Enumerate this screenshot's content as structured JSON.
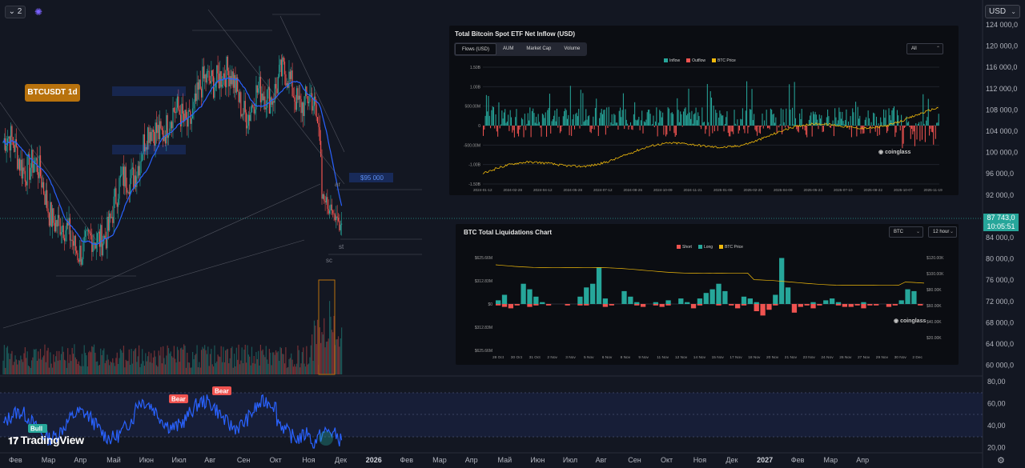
{
  "toolbar": {
    "interval_label": "2",
    "currency": "USD"
  },
  "symbol_badge": "BTCUSDT 1d",
  "price_tag": {
    "price": "87 743,0",
    "countdown": "10:05:51"
  },
  "annotations": {
    "target_label": "$95 000",
    "ar_label": "ar",
    "st_label": "st",
    "sc_label": "sc"
  },
  "rsi_labels": {
    "bull": "Bull",
    "bear1": "Bear",
    "bear2": "Bear"
  },
  "brand": "TradingView",
  "price_axis": [
    "124 000,0",
    "120 000,0",
    "116 000,0",
    "112 000,0",
    "108 000,0",
    "104 000,0",
    "100 000,0",
    "96 000,0",
    "92 000,0",
    "88 000,0",
    "84 000,0",
    "80 000,0",
    "76 000,0",
    "72 000,0",
    "68 000,0",
    "64 000,0",
    "60 000,0"
  ],
  "rsi_axis": [
    "80,00",
    "60,00",
    "40,00",
    "20,00"
  ],
  "time_axis": [
    "Фев",
    "Мар",
    "Апр",
    "Май",
    "Июн",
    "Июл",
    "Авг",
    "Сен",
    "Окт",
    "Ноя",
    "Дек",
    "2026",
    "Фев",
    "Мар",
    "Апр",
    "Май",
    "Июн",
    "Июл",
    "Авг",
    "Сен",
    "Окт",
    "Ноя",
    "Дек",
    "2027",
    "Фев",
    "Мар",
    "Апр"
  ],
  "colors": {
    "up": "#26a69a",
    "down": "#ef5350",
    "ma": "#2962ff",
    "rsi": "#2962ff",
    "badge": "#b8720d",
    "inflow": "#26a69a",
    "outflow": "#ef5350",
    "btc_price": "#f0b90b"
  },
  "etf": {
    "title": "Total Bitcoin Spot ETF Net Inflow (USD)",
    "tabs": [
      "Flows (USD)",
      "AUM",
      "Market Cap",
      "Volume"
    ],
    "range": "All",
    "legend": [
      "Inflow",
      "Outflow",
      "BTC Price"
    ],
    "y_labels": [
      "1.50B",
      "1.00B",
      "500.00M",
      "0",
      "-500.00M",
      "-1.00B",
      "-1.50B"
    ],
    "x_labels": [
      "2024-01-12",
      "2024-02-28",
      "2024-04-12",
      "2024-05-28",
      "2024-07-12",
      "2024-08-26",
      "2024-10-09",
      "2024-11-21",
      "2025-01-08",
      "2025-02-25",
      "2025-04-09",
      "2025-05-23",
      "2025-07-10",
      "2025-08-22",
      "2025-10-07",
      "2025-11-19"
    ],
    "watermark": "coinglass"
  },
  "liq": {
    "title": "BTC Total Liquidations Chart",
    "coin": "BTC",
    "interval": "12 hour",
    "legend": [
      "Short",
      "Long",
      "BTC Price"
    ],
    "y_left": [
      "$625.66M",
      "$312.83M",
      "$0",
      "$312.83M",
      "$625.66M"
    ],
    "y_right": [
      "$120.00K",
      "$100.00K",
      "$80.00K",
      "$60.00K",
      "$40.00K",
      "$20.00K"
    ],
    "x_labels": [
      "28 Oct",
      "30 Oct",
      "31 Oct",
      "2 Nov",
      "3 Nov",
      "5 Nov",
      "6 Nov",
      "8 Nov",
      "9 Nov",
      "11 Nov",
      "12 Nov",
      "14 Nov",
      "15 Nov",
      "17 Nov",
      "18 Nov",
      "20 Nov",
      "21 Nov",
      "23 Nov",
      "24 Nov",
      "26 Nov",
      "27 Nov",
      "29 Nov",
      "30 Nov",
      "2 Dec"
    ],
    "watermark": "coinglass"
  },
  "chart_data": {
    "type": "candlestick",
    "symbol": "BTCUSDT",
    "interval": "1d",
    "last_price": 87743.0,
    "ylim": [
      60000,
      124000
    ],
    "monthly_close_approx": {
      "x": [
        "Фев",
        "Мар",
        "Апр",
        "Май",
        "Июн",
        "Июл",
        "Авг",
        "Сен",
        "Окт",
        "Ноя",
        "Дек"
      ],
      "values": [
        97000,
        84000,
        82000,
        95000,
        105000,
        107000,
        116000,
        108000,
        114000,
        109000,
        87743
      ]
    }
  }
}
